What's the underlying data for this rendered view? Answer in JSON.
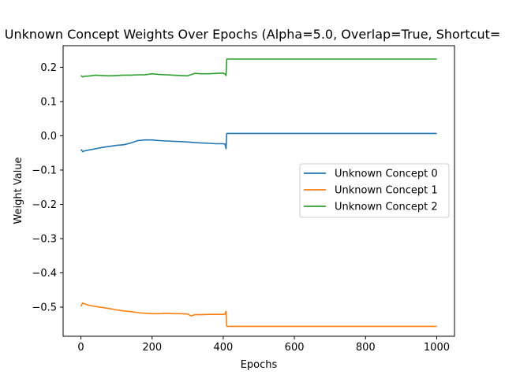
{
  "chart_data": {
    "type": "line",
    "title": "Unknown Concept Weights Over Epochs (Alpha=5.0, Overlap=True, Shortcut=",
    "xlabel": "Epochs",
    "ylabel": "Weight Value",
    "xlim": [
      -50,
      1050
    ],
    "ylim": [
      -0.585,
      0.263
    ],
    "xticks": [
      0,
      200,
      400,
      600,
      800,
      1000
    ],
    "xtick_labels": [
      "0",
      "200",
      "400",
      "600",
      "800",
      "1000"
    ],
    "yticks": [
      -0.5,
      -0.4,
      -0.3,
      -0.2,
      -0.1,
      0.0,
      0.1,
      0.2
    ],
    "ytick_labels": [
      "−0.5",
      "−0.4",
      "−0.3",
      "−0.2",
      "−0.1",
      "0.0",
      "0.1",
      "0.2"
    ],
    "grid": false,
    "legend_position": "center-right",
    "series": [
      {
        "name": "Unknown Concept 0",
        "color": "#1f77b4",
        "x": [
          0,
          5,
          10,
          20,
          40,
          60,
          80,
          100,
          120,
          140,
          160,
          180,
          200,
          220,
          240,
          260,
          280,
          300,
          320,
          340,
          360,
          380,
          400,
          405,
          408,
          410,
          420,
          500,
          600,
          700,
          800,
          900,
          1000
        ],
        "y": [
          -0.04,
          -0.046,
          -0.044,
          -0.042,
          -0.038,
          -0.034,
          -0.031,
          -0.028,
          -0.026,
          -0.021,
          -0.014,
          -0.012,
          -0.012,
          -0.014,
          -0.015,
          -0.016,
          -0.017,
          -0.018,
          -0.02,
          -0.021,
          -0.022,
          -0.023,
          -0.023,
          -0.024,
          -0.038,
          0.007,
          0.007,
          0.007,
          0.007,
          0.007,
          0.007,
          0.007,
          0.007
        ]
      },
      {
        "name": "Unknown Concept 1",
        "color": "#ff7f0e",
        "x": [
          0,
          5,
          10,
          20,
          40,
          60,
          80,
          100,
          120,
          140,
          160,
          180,
          200,
          220,
          240,
          260,
          280,
          300,
          310,
          320,
          340,
          360,
          380,
          400,
          405,
          408,
          410,
          420,
          500,
          600,
          700,
          800,
          900,
          1000
        ],
        "y": [
          -0.498,
          -0.488,
          -0.49,
          -0.494,
          -0.498,
          -0.501,
          -0.504,
          -0.508,
          -0.511,
          -0.513,
          -0.516,
          -0.518,
          -0.519,
          -0.519,
          -0.518,
          -0.519,
          -0.519,
          -0.52,
          -0.526,
          -0.522,
          -0.522,
          -0.521,
          -0.521,
          -0.521,
          -0.52,
          -0.512,
          -0.556,
          -0.556,
          -0.556,
          -0.556,
          -0.556,
          -0.556,
          -0.556,
          -0.556
        ]
      },
      {
        "name": "Unknown Concept 2",
        "color": "#2ca02c",
        "x": [
          0,
          5,
          10,
          20,
          40,
          60,
          80,
          100,
          120,
          140,
          160,
          180,
          200,
          220,
          240,
          260,
          280,
          300,
          320,
          340,
          360,
          380,
          400,
          405,
          408,
          410,
          420,
          500,
          600,
          700,
          800,
          900,
          1000
        ],
        "y": [
          0.176,
          0.172,
          0.174,
          0.174,
          0.177,
          0.176,
          0.175,
          0.176,
          0.177,
          0.177,
          0.178,
          0.178,
          0.181,
          0.179,
          0.178,
          0.177,
          0.176,
          0.175,
          0.182,
          0.181,
          0.181,
          0.182,
          0.183,
          0.18,
          0.176,
          0.224,
          0.224,
          0.224,
          0.224,
          0.224,
          0.224,
          0.224,
          0.224
        ]
      }
    ]
  }
}
